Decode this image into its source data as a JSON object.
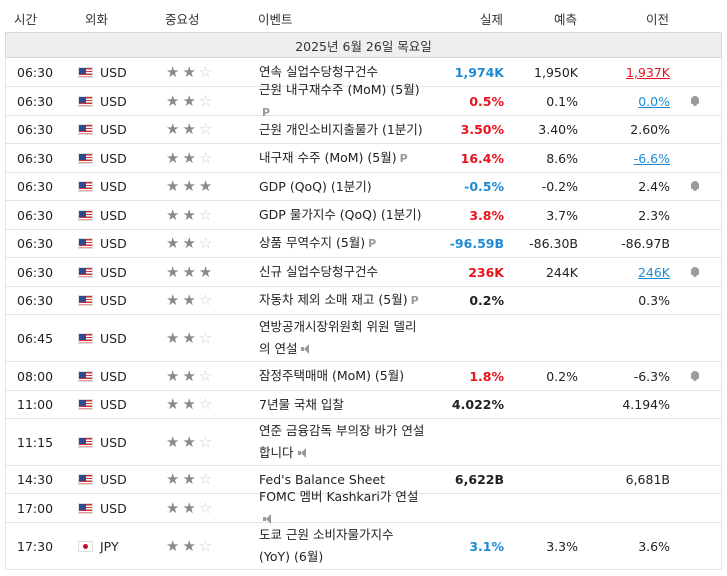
{
  "headers": {
    "time": "시간",
    "currency": "외화",
    "importance": "중요성",
    "event": "이벤트",
    "actual": "실제",
    "forecast": "예측",
    "previous": "이전"
  },
  "date_label": "2025년 6월 26일 목요일",
  "colors": {
    "negative": "#e8141d",
    "positive": "#1f8ad6",
    "star_full": "#8a8a8a",
    "star_empty": "#cfcfcf"
  },
  "rows": [
    {
      "time": "06:30",
      "flag": "flag-us-icon",
      "currency": "USD",
      "stars": 2,
      "event": "연속 실업수당청구건수",
      "suffix": "",
      "actual": "1,974K",
      "actual_color": "blue",
      "forecast": "1,950K",
      "previous": "1,937K",
      "previous_color": "red",
      "previous_underline": true,
      "alert": false,
      "h": 29
    },
    {
      "time": "06:30",
      "flag": "flag-us-icon",
      "currency": "USD",
      "stars": 2,
      "event": "근원 내구재수주 (MoM) (5월)",
      "suffix": "P",
      "actual": "0.5%",
      "actual_color": "red",
      "forecast": "0.1%",
      "previous": "0.0%",
      "previous_color": "blue",
      "previous_underline": true,
      "alert": true,
      "h": 29
    },
    {
      "time": "06:30",
      "flag": "flag-us-icon",
      "currency": "USD",
      "stars": 2,
      "event": "근원 개인소비지출물가 (1분기)",
      "suffix": "",
      "actual": "3.50%",
      "actual_color": "red",
      "forecast": "3.40%",
      "previous": "2.60%",
      "previous_color": "",
      "previous_underline": false,
      "alert": false,
      "h": 28
    },
    {
      "time": "06:30",
      "flag": "flag-us-icon",
      "currency": "USD",
      "stars": 2,
      "event": "내구재 수주 (MoM) (5월)",
      "suffix": "P",
      "actual": "16.4%",
      "actual_color": "red",
      "forecast": "8.6%",
      "previous": "-6.6%",
      "previous_color": "blue",
      "previous_underline": true,
      "alert": false,
      "h": 29
    },
    {
      "time": "06:30",
      "flag": "flag-us-icon",
      "currency": "USD",
      "stars": 3,
      "event": "GDP (QoQ) (1분기)",
      "suffix": "",
      "actual": "-0.5%",
      "actual_color": "blue",
      "forecast": "-0.2%",
      "previous": "2.4%",
      "previous_color": "",
      "previous_underline": false,
      "alert": true,
      "h": 28
    },
    {
      "time": "06:30",
      "flag": "flag-us-icon",
      "currency": "USD",
      "stars": 2,
      "event": "GDP 물가지수 (QoQ) (1분기)",
      "suffix": "",
      "actual": "3.8%",
      "actual_color": "red",
      "forecast": "3.7%",
      "previous": "2.3%",
      "previous_color": "",
      "previous_underline": false,
      "alert": false,
      "h": 29
    },
    {
      "time": "06:30",
      "flag": "flag-us-icon",
      "currency": "USD",
      "stars": 2,
      "event": "상품 무역수지 (5월)",
      "suffix": "P",
      "actual": "-96.59B",
      "actual_color": "blue",
      "forecast": "-86.30B",
      "previous": "-86.97B",
      "previous_color": "",
      "previous_underline": false,
      "alert": false,
      "h": 28
    },
    {
      "time": "06:30",
      "flag": "flag-us-icon",
      "currency": "USD",
      "stars": 3,
      "event": "신규 실업수당청구건수",
      "suffix": "",
      "actual": "236K",
      "actual_color": "red",
      "forecast": "244K",
      "previous": "246K",
      "previous_color": "blue",
      "previous_underline": true,
      "alert": true,
      "h": 29
    },
    {
      "time": "06:30",
      "flag": "flag-us-icon",
      "currency": "USD",
      "stars": 2,
      "event": "자동차 제외 소매 재고 (5월)",
      "suffix": "P",
      "actual": "0.2%",
      "actual_color": "",
      "forecast": "",
      "previous": "0.3%",
      "previous_color": "",
      "previous_underline": false,
      "alert": false,
      "h": 28
    },
    {
      "time": "06:45",
      "flag": "flag-us-icon",
      "currency": "USD",
      "stars": 2,
      "event": "연방공개시장위원회 위원 델리의 연설",
      "suffix": "speaker",
      "actual": "",
      "actual_color": "",
      "forecast": "",
      "previous": "",
      "previous_color": "",
      "previous_underline": false,
      "alert": false,
      "h": 47
    },
    {
      "time": "08:00",
      "flag": "flag-us-icon",
      "currency": "USD",
      "stars": 2,
      "event": "잠정주택매매 (MoM) (5월)",
      "suffix": "",
      "actual": "1.8%",
      "actual_color": "red",
      "forecast": "0.2%",
      "previous": "-6.3%",
      "previous_color": "",
      "previous_underline": false,
      "alert": true,
      "h": 29
    },
    {
      "time": "11:00",
      "flag": "flag-us-icon",
      "currency": "USD",
      "stars": 2,
      "event": "7년물 국채 입찰",
      "suffix": "",
      "actual": "4.022%",
      "actual_color": "",
      "forecast": "",
      "previous": "4.194%",
      "previous_color": "",
      "previous_underline": false,
      "alert": false,
      "h": 28
    },
    {
      "time": "11:15",
      "flag": "flag-us-icon",
      "currency": "USD",
      "stars": 2,
      "event": "연준 금융감독 부의장 바가 연설합니다",
      "suffix": "speaker",
      "actual": "",
      "actual_color": "",
      "forecast": "",
      "previous": "",
      "previous_color": "",
      "previous_underline": false,
      "alert": false,
      "h": 47
    },
    {
      "time": "14:30",
      "flag": "flag-us-icon",
      "currency": "USD",
      "stars": 2,
      "event": "Fed's Balance Sheet",
      "suffix": "",
      "actual": "6,622B",
      "actual_color": "",
      "forecast": "",
      "previous": "6,681B",
      "previous_color": "",
      "previous_underline": false,
      "alert": false,
      "h": 28
    },
    {
      "time": "17:00",
      "flag": "flag-us-icon",
      "currency": "USD",
      "stars": 2,
      "event": "FOMC 멤버 Kashkari가 연설",
      "suffix": "speaker",
      "actual": "",
      "actual_color": "",
      "forecast": "",
      "previous": "",
      "previous_color": "",
      "previous_underline": false,
      "alert": false,
      "h": 29
    },
    {
      "time": "17:30",
      "flag": "flag-jp-icon",
      "currency": "JPY",
      "stars": 2,
      "event": "도쿄 근원 소비자물가지수 (YoY) (6월)",
      "suffix": "",
      "actual": "3.1%",
      "actual_color": "blue",
      "forecast": "3.3%",
      "previous": "3.6%",
      "previous_color": "",
      "previous_underline": false,
      "alert": false,
      "h": 47
    }
  ]
}
